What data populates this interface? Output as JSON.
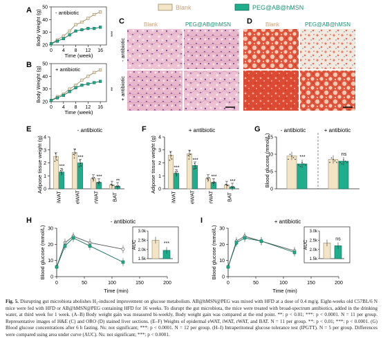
{
  "colors": {
    "blank": "#f3e4c6",
    "blank_stroke": "#9a8a6a",
    "peg": "#1fae8c",
    "peg_stroke": "#0d6b55",
    "title": "#c9a27a",
    "title_green": "#1a8f72"
  },
  "legend": {
    "blank": "Blank",
    "peg": "PEG@AB@hMSN"
  },
  "panels": {
    "A": {
      "letter": "A",
      "annot": "- antibiotic",
      "ylabel": "Body Weight (g)",
      "xlabel": "Time (week)",
      "xticks": [
        "0",
        "4",
        "8",
        "12",
        "16"
      ],
      "yticks": [
        "20",
        "30",
        "40",
        "50"
      ],
      "sig": "***"
    },
    "B": {
      "letter": "B",
      "annot": "+ antibiotic",
      "ylabel": "Body Weight (g)",
      "xlabel": "Time (week)",
      "xticks": [
        "0",
        "4",
        "8",
        "12",
        "16"
      ],
      "yticks": [
        "20",
        "30",
        "40",
        "50"
      ],
      "sig": "**"
    },
    "C": {
      "letter": "C",
      "col1": "Blank",
      "col2": "PEG@AB@hMSN",
      "row1": "- antibiotic",
      "row2": "+ antibiotic"
    },
    "D": {
      "letter": "D",
      "col1": "Blank",
      "col2": "PEG@AB@hMSN"
    },
    "E": {
      "letter": "E",
      "title": "- antibiotic",
      "ylabel": "Adipose tissue weight (g)",
      "yticks": [
        "0",
        "1",
        "2",
        "3",
        "4"
      ],
      "xticks": [
        "iWAT",
        "eWAT",
        "rWAT",
        "BAT"
      ],
      "sig": [
        "***",
        "***",
        "***",
        "**"
      ]
    },
    "F": {
      "letter": "F",
      "title": "+ antibiotic",
      "ylabel": "Adipose tissue weight (g)",
      "yticks": [
        "0",
        "1",
        "2",
        "3",
        "4"
      ],
      "xticks": [
        "iWAT",
        "eWAT",
        "rWAT",
        "BAT"
      ],
      "sig": [
        "***",
        "***",
        "***",
        "***"
      ]
    },
    "G": {
      "letter": "G",
      "title1": "- antibiotic",
      "title2": "+ antibiotic",
      "ylabel": "Blood glucose (mmol/L)",
      "yticks": [
        "0",
        "5",
        "10",
        "15"
      ],
      "sig1": "***",
      "sig2": "ns"
    },
    "H": {
      "letter": "H",
      "title": "- antibiotic",
      "ylabel": "Blood glucose (mmol/L)",
      "xlabel": "Time (min)",
      "xticks": [
        "0",
        "50",
        "100",
        "150",
        "200"
      ],
      "yticks": [
        "0",
        "10",
        "20",
        "30"
      ],
      "inset_label": "AUC",
      "inset_ticks": [
        "3.0k",
        "2.5k",
        "2.0k",
        "1.5k"
      ],
      "inset_sig": "***"
    },
    "I": {
      "letter": "I",
      "title": "+ antibiotic",
      "ylabel": "Blood glucose (mmol/L)",
      "xlabel": "Time (min)",
      "xticks": [
        "0",
        "50",
        "100",
        "150",
        "200"
      ],
      "yticks": [
        "0",
        "10",
        "20",
        "30"
      ],
      "inset_label": "AUC",
      "inset_ticks": [
        "3.0k",
        "2.5k",
        "2.0k",
        "1.5k"
      ],
      "inset_sig": "ns"
    }
  },
  "chart_data": [
    {
      "panel": "A",
      "type": "line",
      "x": [
        0,
        2,
        4,
        6,
        8,
        10,
        12,
        14,
        16
      ],
      "series": [
        {
          "values": [
            21,
            24,
            27,
            31,
            36,
            38,
            41,
            44,
            46
          ]
        },
        {
          "values": [
            21,
            23,
            25,
            28,
            31,
            32,
            33,
            33,
            34
          ]
        }
      ],
      "ylim": [
        20,
        50
      ],
      "xlim": [
        0,
        18
      ]
    },
    {
      "panel": "B",
      "type": "line",
      "x": [
        0,
        2,
        4,
        6,
        8,
        10,
        12,
        14,
        16
      ],
      "series": [
        {
          "values": [
            21,
            24,
            26,
            30,
            33,
            37,
            40,
            43,
            45
          ]
        },
        {
          "values": [
            21,
            23,
            25,
            28,
            31,
            33,
            34,
            35,
            36
          ]
        }
      ],
      "ylim": [
        20,
        50
      ],
      "xlim": [
        0,
        18
      ]
    },
    {
      "panel": "E",
      "type": "bar",
      "categories": [
        "iWAT",
        "eWAT",
        "rWAT",
        "BAT"
      ],
      "series": [
        {
          "values": [
            2.5,
            2.8,
            0.8,
            0.3
          ]
        },
        {
          "values": [
            1.3,
            2.0,
            0.5,
            0.2
          ]
        }
      ],
      "ylim": [
        0,
        4
      ]
    },
    {
      "panel": "F",
      "type": "bar",
      "categories": [
        "iWAT",
        "eWAT",
        "rWAT",
        "BAT"
      ],
      "series": [
        {
          "values": [
            2.6,
            2.7,
            0.8,
            0.3
          ]
        },
        {
          "values": [
            1.2,
            1.8,
            0.5,
            0.15
          ]
        }
      ],
      "ylim": [
        0,
        4
      ]
    },
    {
      "panel": "G",
      "type": "bar",
      "categories": [
        "- antibiotic",
        "+ antibiotic"
      ],
      "series": [
        {
          "values": [
            9.5,
            8.5
          ]
        },
        {
          "values": [
            7.2,
            8.0
          ]
        }
      ],
      "ylim": [
        0,
        15
      ]
    },
    {
      "panel": "H",
      "type": "line",
      "x": [
        0,
        15,
        30,
        60,
        120
      ],
      "series": [
        {
          "values": [
            6,
            21,
            25,
            21,
            17
          ]
        },
        {
          "values": [
            6,
            19,
            24,
            19,
            9
          ]
        }
      ],
      "ylim": [
        0,
        30
      ],
      "xlim": [
        0,
        200
      ],
      "inset": {
        "type": "bar",
        "values": [
          2500,
          1950
        ],
        "ylim": [
          1500,
          3000
        ]
      }
    },
    {
      "panel": "I",
      "type": "line",
      "x": [
        0,
        15,
        30,
        60,
        120
      ],
      "series": [
        {
          "values": [
            6,
            22,
            25,
            22,
            16
          ]
        },
        {
          "values": [
            6,
            21,
            24,
            22,
            15
          ]
        }
      ],
      "ylim": [
        0,
        30
      ],
      "xlim": [
        0,
        200
      ],
      "inset": {
        "type": "bar",
        "values": [
          2350,
          2200
        ],
        "ylim": [
          1500,
          3000
        ]
      }
    }
  ],
  "caption": {
    "lead": "Fig. 5.",
    "text": "Disrupting gut microbiota abolishes H₂-induced improvement on glucose metabolism. AB@hMSN@PEG was mixed with HFD at a dose of 0.4 mg/g. Eight-weeks old C57BL/6 N mice were fed with HFD or AB@hMSN@PEG containing HFD for 16 weeks. To disrupt the gut microbiota, the mice were treated with broad-spectrum antibiotics, added in the drinking water, at third week for 1 week. (A–B) Body weight gain was measured bi-weekly. Body weight gain was compared at the end point. **: p < 0.01; ***: p < 0.0001. N = 11 per group. Representative images of H&E (C) and ORO (D) stained liver sections. (E–F) Weights of epidermal eWAT, iWAT, rWAT, and BAT. N = 11 per group. **: p < 0.01; ***: p < 0.0001. (G) Blood glucose concentrations after 6 h fasting. Ns: not significant; ***: p < 0.0001. N = 12 per group. (H–I) Intraperitoneal glucose tolerance test (IPGTT). N = 5 per group. Differences were compared using area under curve (AUC). Ns: not significant; ***: p < 0.0001."
  }
}
